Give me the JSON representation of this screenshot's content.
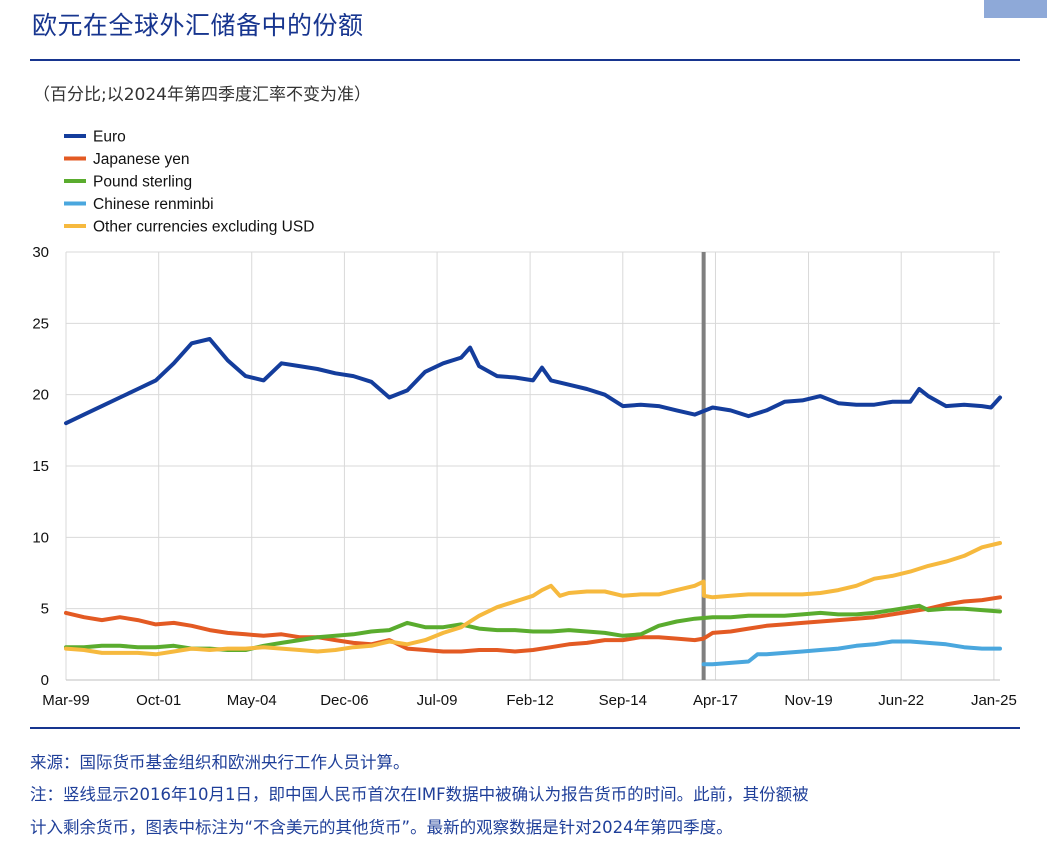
{
  "page": {
    "title": "欧元在全球外汇储备中的份额",
    "subtitle": "（百分比;以2024年第四季度汇率不变为准）",
    "source_note": "来源：国际货币基金组织和欧洲央行工作人员计算。",
    "note_line1": "注：竖线显示2016年10月1日，即中国人民币首次在IMF数据中被确认为报告货币的时间。此前，其份额被",
    "note_line2": "计入剩余货币，图表中标注为“不含美元的其他货币”。最新的观察数据是针对2024年第四季度。"
  },
  "chart_data": {
    "type": "line",
    "xlim": [
      1999.0,
      2025.0
    ],
    "ylim": [
      0,
      30
    ],
    "yticks": [
      0,
      5,
      10,
      15,
      20,
      25,
      30
    ],
    "xticks": [
      {
        "label": "Mar-99",
        "value": 1999.0
      },
      {
        "label": "Oct-01",
        "value": 2001.58
      },
      {
        "label": "May-04",
        "value": 2004.17
      },
      {
        "label": "Dec-06",
        "value": 2006.75
      },
      {
        "label": "Jul-09",
        "value": 2009.33
      },
      {
        "label": "Feb-12",
        "value": 2011.92
      },
      {
        "label": "Sep-14",
        "value": 2014.5
      },
      {
        "label": "Apr-17",
        "value": 2017.08
      },
      {
        "label": "Nov-19",
        "value": 2019.67
      },
      {
        "label": "Jun-22",
        "value": 2022.25
      },
      {
        "label": "Jan-25",
        "value": 2024.83
      }
    ],
    "vertical_marker": {
      "x": 2016.75,
      "color": "#7f7f7f"
    },
    "grid": true,
    "legend_position": "top-left",
    "series": [
      {
        "name": "Euro",
        "color": "#143d9c",
        "points": [
          [
            1999.0,
            18.0
          ],
          [
            1999.5,
            18.6
          ],
          [
            2000.0,
            19.2
          ],
          [
            2000.5,
            19.8
          ],
          [
            2001.0,
            20.4
          ],
          [
            2001.5,
            21.0
          ],
          [
            2002.0,
            22.2
          ],
          [
            2002.5,
            23.6
          ],
          [
            2003.0,
            23.9
          ],
          [
            2003.5,
            22.4
          ],
          [
            2004.0,
            21.3
          ],
          [
            2004.5,
            21.0
          ],
          [
            2005.0,
            22.2
          ],
          [
            2005.5,
            22.0
          ],
          [
            2006.0,
            21.8
          ],
          [
            2006.5,
            21.5
          ],
          [
            2007.0,
            21.3
          ],
          [
            2007.5,
            20.9
          ],
          [
            2008.0,
            19.8
          ],
          [
            2008.5,
            20.3
          ],
          [
            2009.0,
            21.6
          ],
          [
            2009.5,
            22.2
          ],
          [
            2010.0,
            22.6
          ],
          [
            2010.25,
            23.3
          ],
          [
            2010.5,
            22.0
          ],
          [
            2011.0,
            21.3
          ],
          [
            2011.5,
            21.2
          ],
          [
            2012.0,
            21.0
          ],
          [
            2012.25,
            21.9
          ],
          [
            2012.5,
            21.0
          ],
          [
            2013.0,
            20.7
          ],
          [
            2013.5,
            20.4
          ],
          [
            2014.0,
            20.0
          ],
          [
            2014.5,
            19.2
          ],
          [
            2015.0,
            19.3
          ],
          [
            2015.5,
            19.2
          ],
          [
            2016.0,
            18.9
          ],
          [
            2016.5,
            18.6
          ],
          [
            2017.0,
            19.1
          ],
          [
            2017.5,
            18.9
          ],
          [
            2018.0,
            18.5
          ],
          [
            2018.5,
            18.9
          ],
          [
            2019.0,
            19.5
          ],
          [
            2019.5,
            19.6
          ],
          [
            2020.0,
            19.9
          ],
          [
            2020.5,
            19.4
          ],
          [
            2021.0,
            19.3
          ],
          [
            2021.5,
            19.3
          ],
          [
            2022.0,
            19.5
          ],
          [
            2022.5,
            19.5
          ],
          [
            2022.75,
            20.4
          ],
          [
            2023.0,
            19.9
          ],
          [
            2023.5,
            19.2
          ],
          [
            2024.0,
            19.3
          ],
          [
            2024.5,
            19.2
          ],
          [
            2024.75,
            19.1
          ],
          [
            2025.0,
            19.8
          ]
        ]
      },
      {
        "name": "Japanese yen",
        "color": "#e35a23",
        "points": [
          [
            1999.0,
            4.7
          ],
          [
            1999.5,
            4.4
          ],
          [
            2000.0,
            4.2
          ],
          [
            2000.5,
            4.4
          ],
          [
            2001.0,
            4.2
          ],
          [
            2001.5,
            3.9
          ],
          [
            2002.0,
            4.0
          ],
          [
            2002.5,
            3.8
          ],
          [
            2003.0,
            3.5
          ],
          [
            2003.5,
            3.3
          ],
          [
            2004.0,
            3.2
          ],
          [
            2004.5,
            3.1
          ],
          [
            2005.0,
            3.2
          ],
          [
            2005.5,
            3.0
          ],
          [
            2006.0,
            3.0
          ],
          [
            2006.5,
            2.8
          ],
          [
            2007.0,
            2.6
          ],
          [
            2007.5,
            2.5
          ],
          [
            2008.0,
            2.8
          ],
          [
            2008.5,
            2.2
          ],
          [
            2009.0,
            2.1
          ],
          [
            2009.5,
            2.0
          ],
          [
            2010.0,
            2.0
          ],
          [
            2010.5,
            2.1
          ],
          [
            2011.0,
            2.1
          ],
          [
            2011.5,
            2.0
          ],
          [
            2012.0,
            2.1
          ],
          [
            2012.5,
            2.3
          ],
          [
            2013.0,
            2.5
          ],
          [
            2013.5,
            2.6
          ],
          [
            2014.0,
            2.8
          ],
          [
            2014.5,
            2.8
          ],
          [
            2015.0,
            3.0
          ],
          [
            2015.5,
            3.0
          ],
          [
            2016.0,
            2.9
          ],
          [
            2016.5,
            2.8
          ],
          [
            2016.75,
            2.9
          ],
          [
            2017.0,
            3.3
          ],
          [
            2017.5,
            3.4
          ],
          [
            2018.0,
            3.6
          ],
          [
            2018.5,
            3.8
          ],
          [
            2019.0,
            3.9
          ],
          [
            2019.5,
            4.0
          ],
          [
            2020.0,
            4.1
          ],
          [
            2020.5,
            4.2
          ],
          [
            2021.0,
            4.3
          ],
          [
            2021.5,
            4.4
          ],
          [
            2022.0,
            4.6
          ],
          [
            2022.5,
            4.8
          ],
          [
            2023.0,
            5.0
          ],
          [
            2023.5,
            5.3
          ],
          [
            2024.0,
            5.5
          ],
          [
            2024.5,
            5.6
          ],
          [
            2025.0,
            5.8
          ]
        ]
      },
      {
        "name": "Pound sterling",
        "color": "#5aac2e",
        "points": [
          [
            1999.0,
            2.3
          ],
          [
            1999.5,
            2.3
          ],
          [
            2000.0,
            2.4
          ],
          [
            2000.5,
            2.4
          ],
          [
            2001.0,
            2.3
          ],
          [
            2001.5,
            2.3
          ],
          [
            2002.0,
            2.4
          ],
          [
            2002.5,
            2.2
          ],
          [
            2003.0,
            2.2
          ],
          [
            2003.5,
            2.1
          ],
          [
            2004.0,
            2.1
          ],
          [
            2004.5,
            2.4
          ],
          [
            2005.0,
            2.6
          ],
          [
            2005.5,
            2.8
          ],
          [
            2006.0,
            3.0
          ],
          [
            2006.5,
            3.1
          ],
          [
            2007.0,
            3.2
          ],
          [
            2007.5,
            3.4
          ],
          [
            2008.0,
            3.5
          ],
          [
            2008.5,
            4.0
          ],
          [
            2009.0,
            3.7
          ],
          [
            2009.5,
            3.7
          ],
          [
            2010.0,
            3.9
          ],
          [
            2010.5,
            3.6
          ],
          [
            2011.0,
            3.5
          ],
          [
            2011.5,
            3.5
          ],
          [
            2012.0,
            3.4
          ],
          [
            2012.5,
            3.4
          ],
          [
            2013.0,
            3.5
          ],
          [
            2013.5,
            3.4
          ],
          [
            2014.0,
            3.3
          ],
          [
            2014.5,
            3.1
          ],
          [
            2015.0,
            3.2
          ],
          [
            2015.5,
            3.8
          ],
          [
            2016.0,
            4.1
          ],
          [
            2016.5,
            4.3
          ],
          [
            2017.0,
            4.4
          ],
          [
            2017.5,
            4.4
          ],
          [
            2018.0,
            4.5
          ],
          [
            2018.5,
            4.5
          ],
          [
            2019.0,
            4.5
          ],
          [
            2019.5,
            4.6
          ],
          [
            2020.0,
            4.7
          ],
          [
            2020.5,
            4.6
          ],
          [
            2021.0,
            4.6
          ],
          [
            2021.5,
            4.7
          ],
          [
            2022.0,
            4.9
          ],
          [
            2022.5,
            5.1
          ],
          [
            2022.75,
            5.2
          ],
          [
            2023.0,
            4.9
          ],
          [
            2023.5,
            5.0
          ],
          [
            2024.0,
            5.0
          ],
          [
            2024.5,
            4.9
          ],
          [
            2025.0,
            4.8
          ]
        ]
      },
      {
        "name": "Chinese renminbi",
        "color": "#4aa7de",
        "points": [
          [
            2016.75,
            1.1
          ],
          [
            2017.0,
            1.1
          ],
          [
            2017.5,
            1.2
          ],
          [
            2018.0,
            1.3
          ],
          [
            2018.25,
            1.8
          ],
          [
            2018.5,
            1.8
          ],
          [
            2019.0,
            1.9
          ],
          [
            2019.5,
            2.0
          ],
          [
            2020.0,
            2.1
          ],
          [
            2020.5,
            2.2
          ],
          [
            2021.0,
            2.4
          ],
          [
            2021.5,
            2.5
          ],
          [
            2022.0,
            2.7
          ],
          [
            2022.5,
            2.7
          ],
          [
            2023.0,
            2.6
          ],
          [
            2023.5,
            2.5
          ],
          [
            2024.0,
            2.3
          ],
          [
            2024.5,
            2.2
          ],
          [
            2025.0,
            2.2
          ]
        ]
      },
      {
        "name": "Other currencies excluding USD",
        "color": "#f6b93e",
        "points": [
          [
            1999.0,
            2.2
          ],
          [
            1999.5,
            2.1
          ],
          [
            2000.0,
            1.9
          ],
          [
            2000.5,
            1.9
          ],
          [
            2001.0,
            1.9
          ],
          [
            2001.5,
            1.8
          ],
          [
            2002.0,
            2.0
          ],
          [
            2002.5,
            2.2
          ],
          [
            2003.0,
            2.1
          ],
          [
            2003.5,
            2.2
          ],
          [
            2004.0,
            2.2
          ],
          [
            2004.5,
            2.3
          ],
          [
            2005.0,
            2.2
          ],
          [
            2005.5,
            2.1
          ],
          [
            2006.0,
            2.0
          ],
          [
            2006.5,
            2.1
          ],
          [
            2007.0,
            2.3
          ],
          [
            2007.5,
            2.4
          ],
          [
            2008.0,
            2.7
          ],
          [
            2008.5,
            2.5
          ],
          [
            2009.0,
            2.8
          ],
          [
            2009.5,
            3.3
          ],
          [
            2010.0,
            3.7
          ],
          [
            2010.5,
            4.5
          ],
          [
            2011.0,
            5.1
          ],
          [
            2011.5,
            5.5
          ],
          [
            2012.0,
            5.9
          ],
          [
            2012.25,
            6.3
          ],
          [
            2012.5,
            6.6
          ],
          [
            2012.75,
            5.9
          ],
          [
            2013.0,
            6.1
          ],
          [
            2013.5,
            6.2
          ],
          [
            2014.0,
            6.2
          ],
          [
            2014.5,
            5.9
          ],
          [
            2015.0,
            6.0
          ],
          [
            2015.5,
            6.0
          ],
          [
            2016.0,
            6.3
          ],
          [
            2016.5,
            6.6
          ],
          [
            2016.75,
            6.9
          ],
          [
            2016.76,
            5.9
          ],
          [
            2017.0,
            5.8
          ],
          [
            2017.5,
            5.9
          ],
          [
            2018.0,
            6.0
          ],
          [
            2018.5,
            6.0
          ],
          [
            2019.0,
            6.0
          ],
          [
            2019.5,
            6.0
          ],
          [
            2020.0,
            6.1
          ],
          [
            2020.5,
            6.3
          ],
          [
            2021.0,
            6.6
          ],
          [
            2021.5,
            7.1
          ],
          [
            2022.0,
            7.3
          ],
          [
            2022.5,
            7.6
          ],
          [
            2023.0,
            8.0
          ],
          [
            2023.5,
            8.3
          ],
          [
            2024.0,
            8.7
          ],
          [
            2024.5,
            9.3
          ],
          [
            2025.0,
            9.6
          ]
        ]
      }
    ]
  }
}
